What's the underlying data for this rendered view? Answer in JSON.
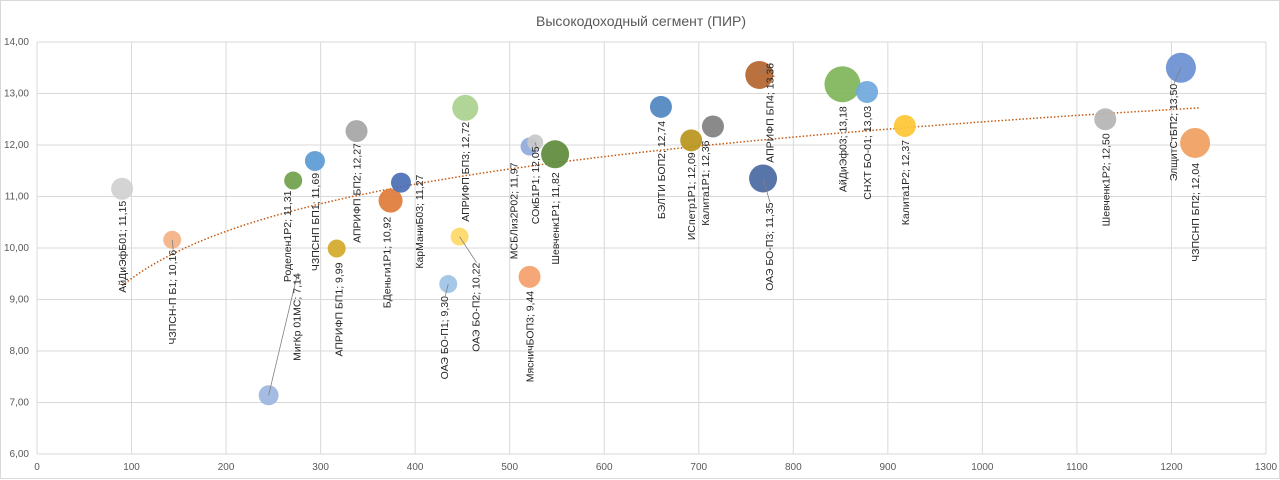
{
  "chart_data": {
    "type": "scatter",
    "subtype": "bubble",
    "title": "Высокодоходный сегмент (ПИР)",
    "xlabel": "",
    "ylabel": "",
    "xlim": [
      0,
      1300
    ],
    "ylim": [
      6,
      14
    ],
    "x_ticks": [
      "0",
      "100",
      "200",
      "300",
      "400",
      "500",
      "600",
      "700",
      "800",
      "900",
      "1000",
      "1100",
      "1200",
      "1300"
    ],
    "y_ticks": [
      "6,00",
      "7,00",
      "8,00",
      "9,00",
      "10,00",
      "11,00",
      "12,00",
      "13,00",
      "14,00"
    ],
    "grid": true,
    "legend": "none",
    "trendline": {
      "type": "logarithmic",
      "color": "#c55a11",
      "x_range": [
        90,
        1230
      ],
      "a": 3.33,
      "b": 1.32
    },
    "points": [
      {
        "name": "АйДиЭфБ01",
        "x": 90,
        "y": 11.15,
        "size": 1.1,
        "color": "#d0d0d0",
        "label": "АйДиЭфБ01; 11,15"
      },
      {
        "name": "ЧЗПСН-П Б1",
        "x": 143,
        "y": 10.16,
        "size": 0.9,
        "color": "#f4b183",
        "label": "ЧЗПСН-П Б1; 10,16"
      },
      {
        "name": "МигКр 01МС",
        "x": 245,
        "y": 7.14,
        "size": 1.0,
        "color": "#9db6e0",
        "label": "МигКр 01МС; 7,14"
      },
      {
        "name": "Роделен1Р2",
        "x": 271,
        "y": 11.31,
        "size": 0.9,
        "color": "#70a04a",
        "label": "Роделен1Р2; 11,31"
      },
      {
        "name": "ЧЗПСНП БП1",
        "x": 294,
        "y": 11.69,
        "size": 1.0,
        "color": "#5b9bd5",
        "label": "ЧЗПСНП БП1; 11,69"
      },
      {
        "name": "АПРИФП БП1",
        "x": 317,
        "y": 9.99,
        "size": 0.9,
        "color": "#d4a82a",
        "label": "АПРИФП БП1; 9,99"
      },
      {
        "name": "АПРИФП БП2",
        "x": 338,
        "y": 12.27,
        "size": 1.1,
        "color": "#a5a5a5",
        "label": "АПРИФП БП2; 12,27"
      },
      {
        "name": "БДеньги1Р1",
        "x": 374,
        "y": 10.92,
        "size": 1.2,
        "color": "#e07b39",
        "label": "БДеньги1Р1; 10,92"
      },
      {
        "name": "КарМаниБ03",
        "x": 385,
        "y": 11.27,
        "size": 1.0,
        "color": "#4a6fb5",
        "label": "КарМаниБ03; 11,27"
      },
      {
        "name": "ОАЭ БО-П1",
        "x": 435,
        "y": 9.3,
        "size": 0.9,
        "color": "#9dc3e6",
        "label": "ОАЭ БО-П1; 9,30"
      },
      {
        "name": "ОАЭ БО-П2",
        "x": 447,
        "y": 10.22,
        "size": 0.9,
        "color": "#ffd966",
        "label": "ОАЭ БО-П2; 10,22"
      },
      {
        "name": "АПРИФП БП3",
        "x": 453,
        "y": 12.72,
        "size": 1.3,
        "color": "#a9d18e",
        "label": "АПРИФП БП3; 12,72"
      },
      {
        "name": "МСБЛиз2Р02",
        "x": 521,
        "y": 11.97,
        "size": 0.9,
        "color": "#8faadc",
        "label": "МСБЛиз2Р02; 11,97"
      },
      {
        "name": "СОкБ1Р1",
        "x": 527,
        "y": 12.05,
        "size": 0.8,
        "color": "#c9c9c9",
        "label": "СОкБ1Р1; 12,05"
      },
      {
        "name": "МясничБОП3",
        "x": 521,
        "y": 9.44,
        "size": 1.1,
        "color": "#f4a06b",
        "label": "МясничБОП3; 9,44"
      },
      {
        "name": "Шевченк1Р1",
        "x": 548,
        "y": 11.82,
        "size": 1.4,
        "color": "#5e8a3a",
        "label": "Шевченк1Р1; 11,82"
      },
      {
        "name": "БЭЛТИ БОП2",
        "x": 660,
        "y": 12.74,
        "size": 1.1,
        "color": "#4f86bf",
        "label": "БЭЛТИ БОП2; 12,74"
      },
      {
        "name": "ИСпетр1Р1",
        "x": 692,
        "y": 12.09,
        "size": 1.1,
        "color": "#b8941c",
        "label": "ИСпетр1Р1; 12,09"
      },
      {
        "name": "Калита1Р1",
        "x": 715,
        "y": 12.36,
        "size": 1.1,
        "color": "#808080",
        "label": "Калита1Р1; 12,36"
      },
      {
        "name": "АПРИФП БП4",
        "x": 764,
        "y": 13.36,
        "size": 1.4,
        "color": "#b5652e",
        "label": "АПРИФП БП4; 13,36"
      },
      {
        "name": "ОАЭ БО-П3",
        "x": 768,
        "y": 11.35,
        "size": 1.4,
        "color": "#4a69a3",
        "label": "ОАЭ БО-П3; 11,35"
      },
      {
        "name": "АйДиЭф03",
        "x": 852,
        "y": 13.18,
        "size": 1.8,
        "color": "#7fb55a",
        "label": "АйДиЭф03; 13,18"
      },
      {
        "name": "СНХТ БО-01",
        "x": 878,
        "y": 13.03,
        "size": 1.1,
        "color": "#6fa8dc",
        "label": "СНХТ БО-01; 13,03"
      },
      {
        "name": "Калита1Р2",
        "x": 918,
        "y": 12.37,
        "size": 1.1,
        "color": "#ffc533",
        "label": "Калита1Р2; 12,37"
      },
      {
        "name": "Шевченк1Р2",
        "x": 1130,
        "y": 12.5,
        "size": 1.1,
        "color": "#b4b4b4",
        "label": "Шевченк1Р2; 12,50"
      },
      {
        "name": "ЭлщитСтБП2",
        "x": 1210,
        "y": 13.5,
        "size": 1.5,
        "color": "#6a8fd0",
        "label": "ЭлщитСтБП2; 13,50"
      },
      {
        "name": "ЧЗПСНП БП2",
        "x": 1225,
        "y": 12.04,
        "size": 1.5,
        "color": "#f0a060",
        "label": "ЧЗПСНП БП2; 12,04"
      }
    ]
  }
}
